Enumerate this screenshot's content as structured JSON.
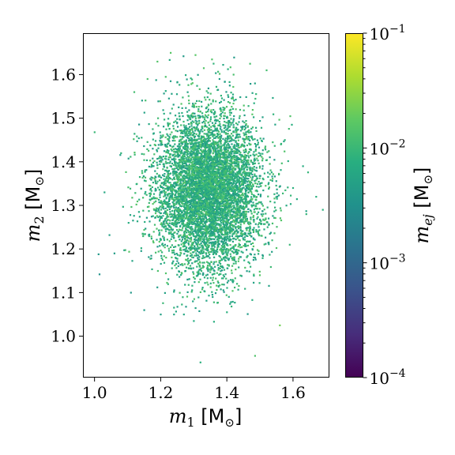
{
  "chart_data": {
    "type": "scatter",
    "xlabel": {
      "var": "m",
      "sub": "1",
      "unit": "[M",
      "sun": "⊙",
      "close": "]"
    },
    "ylabel": {
      "var": "m",
      "sub": "2",
      "unit": "[M",
      "sun": "⊙",
      "close": "]"
    },
    "xlim": [
      0.965,
      1.71
    ],
    "ylim": [
      0.905,
      1.695
    ],
    "xticks": [
      1.0,
      1.2,
      1.4,
      1.6
    ],
    "xtick_labels": [
      "1.0",
      "1.2",
      "1.4",
      "1.6"
    ],
    "yticks": [
      1.0,
      1.1,
      1.2,
      1.3,
      1.4,
      1.5,
      1.6
    ],
    "ytick_labels": [
      "1.0",
      "1.1",
      "1.2",
      "1.3",
      "1.4",
      "1.5",
      "1.6"
    ],
    "grid": false,
    "colorbar": {
      "label": {
        "var": "m",
        "sub": "ej",
        "unit": "[M",
        "sun": "⊙",
        "close": "]"
      },
      "scale": "log",
      "range": [
        0.0001,
        0.1
      ],
      "colormap": "viridis",
      "ticks": [
        {
          "value": 0.1,
          "base": "10",
          "exp": "−1"
        },
        {
          "value": 0.01,
          "base": "10",
          "exp": "−2"
        },
        {
          "value": 0.001,
          "base": "10",
          "exp": "−3"
        },
        {
          "value": 0.0001,
          "base": "10",
          "exp": "−4"
        }
      ]
    },
    "points": [
      {
        "x": 1.0,
        "y": 1.468,
        "c": 0.01
      },
      {
        "x": 1.012,
        "y": 1.188,
        "c": 0.004
      },
      {
        "x": 1.015,
        "y": 1.142,
        "c": 0.0035
      },
      {
        "x": 1.03,
        "y": 1.33,
        "c": 0.006
      },
      {
        "x": 1.045,
        "y": 1.232,
        "c": 0.005
      },
      {
        "x": 1.06,
        "y": 1.19,
        "c": 0.0045
      },
      {
        "x": 1.08,
        "y": 1.42,
        "c": 0.009
      },
      {
        "x": 1.11,
        "y": 1.1,
        "c": 0.004
      },
      {
        "x": 1.12,
        "y": 1.56,
        "c": 0.012
      },
      {
        "x": 1.15,
        "y": 1.06,
        "c": 0.0045
      },
      {
        "x": 1.16,
        "y": 1.59,
        "c": 0.014
      },
      {
        "x": 1.19,
        "y": 1.63,
        "c": 0.015
      },
      {
        "x": 1.2,
        "y": 1.05,
        "c": 0.005
      },
      {
        "x": 1.215,
        "y": 1.595,
        "c": 0.014
      },
      {
        "x": 1.23,
        "y": 1.65,
        "c": 0.016
      },
      {
        "x": 1.24,
        "y": 1.05,
        "c": 0.006
      },
      {
        "x": 1.27,
        "y": 1.05,
        "c": 0.006
      },
      {
        "x": 1.3,
        "y": 1.035,
        "c": 0.007
      },
      {
        "x": 1.305,
        "y": 1.645,
        "c": 0.016
      },
      {
        "x": 1.32,
        "y": 0.94,
        "c": 0.008
      },
      {
        "x": 1.33,
        "y": 1.615,
        "c": 0.015
      },
      {
        "x": 1.355,
        "y": 1.635,
        "c": 0.015
      },
      {
        "x": 1.4,
        "y": 1.055,
        "c": 0.008
      },
      {
        "x": 1.42,
        "y": 1.6,
        "c": 0.013
      },
      {
        "x": 1.47,
        "y": 1.625,
        "c": 0.013
      },
      {
        "x": 1.485,
        "y": 0.955,
        "c": 0.014
      },
      {
        "x": 1.52,
        "y": 1.61,
        "c": 0.012
      },
      {
        "x": 1.56,
        "y": 1.025,
        "c": 0.022
      },
      {
        "x": 1.575,
        "y": 1.45,
        "c": 0.009
      },
      {
        "x": 1.59,
        "y": 1.21,
        "c": 0.01
      },
      {
        "x": 1.6,
        "y": 1.34,
        "c": 0.008
      },
      {
        "x": 1.63,
        "y": 1.39,
        "c": 0.007
      },
      {
        "x": 1.64,
        "y": 1.28,
        "c": 0.009
      },
      {
        "x": 1.67,
        "y": 1.32,
        "c": 0.008
      },
      {
        "x": 1.69,
        "y": 1.29,
        "c": 0.008
      }
    ],
    "bulk": {
      "count": 7000,
      "center_x": 1.345,
      "center_y": 1.335,
      "sigma_x": 0.078,
      "sigma_y": 0.088,
      "color_range": [
        0.004,
        0.016
      ]
    }
  }
}
